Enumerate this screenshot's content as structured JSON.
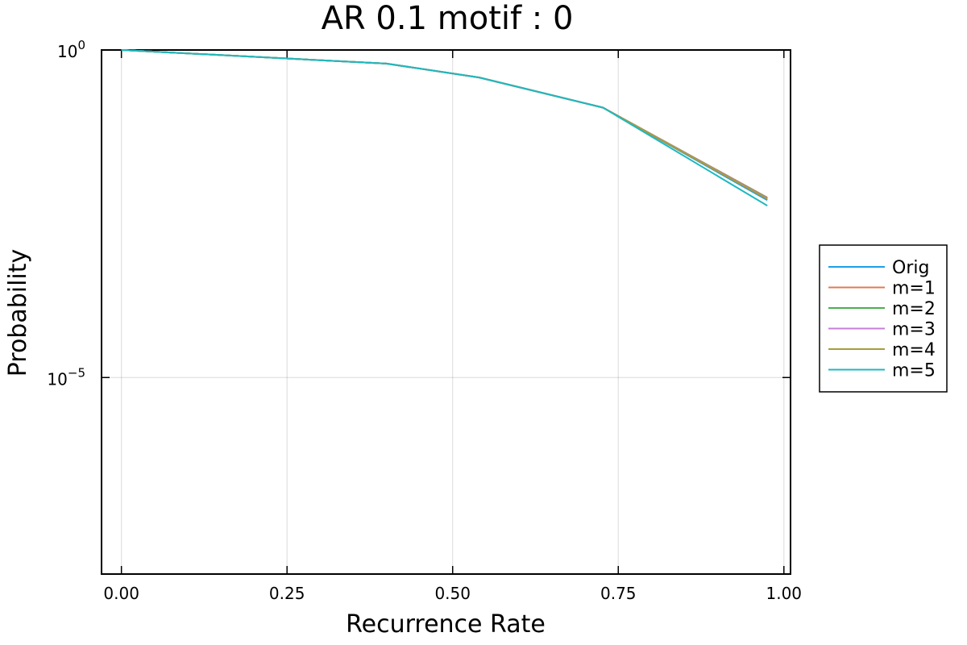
{
  "chart_data": {
    "type": "line",
    "title": "AR 0.1 motif : 0",
    "xlabel": "Recurrence Rate",
    "ylabel": "Probability",
    "xlim": [
      -0.03,
      1.01
    ],
    "ylim_log10": [
      -8,
      0
    ],
    "y_scale": "log",
    "x_ticks": [
      0.0,
      0.25,
      0.5,
      0.75,
      1.0
    ],
    "x_tick_labels": [
      "0.00",
      "0.25",
      "0.50",
      "0.75",
      "1.00"
    ],
    "y_ticks": [
      {
        "base": "10",
        "exp": "0",
        "value": 1
      },
      {
        "base": "10",
        "exp": "−5",
        "value": 1e-05
      }
    ],
    "grid": true,
    "legend_position": "outside-right",
    "x": [
      0.0,
      0.4,
      0.54,
      0.727,
      0.975
    ],
    "series": [
      {
        "name": "Orig",
        "color": "#1f9ee8",
        "values": [
          1.0,
          0.62,
          0.38,
          0.132,
          0.0051
        ]
      },
      {
        "name": "m=1",
        "color": "#e07b54",
        "values": [
          1.0,
          0.62,
          0.38,
          0.132,
          0.0056
        ]
      },
      {
        "name": "m=2",
        "color": "#4caf50",
        "values": [
          1.0,
          0.62,
          0.38,
          0.132,
          0.0055
        ]
      },
      {
        "name": "m=3",
        "color": "#c77fd6",
        "values": [
          1.0,
          0.62,
          0.38,
          0.132,
          0.0054
        ]
      },
      {
        "name": "m=4",
        "color": "#a89c3a",
        "values": [
          1.0,
          0.62,
          0.38,
          0.132,
          0.0053
        ]
      },
      {
        "name": "m=5",
        "color": "#1fb8c0",
        "values": [
          1.0,
          0.62,
          0.38,
          0.132,
          0.0042
        ]
      }
    ]
  }
}
